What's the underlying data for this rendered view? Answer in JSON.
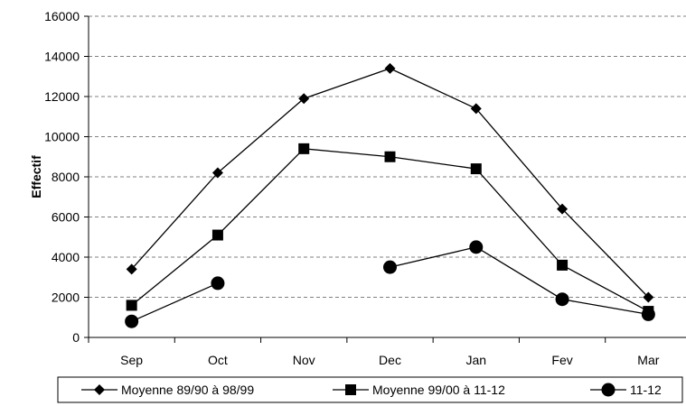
{
  "chart_data": {
    "type": "line",
    "title": "",
    "xlabel": "",
    "ylabel": "Effectif",
    "categories": [
      "Sep",
      "Oct",
      "Nov",
      "Dec",
      "Jan",
      "Fev",
      "Mar"
    ],
    "ylim": [
      0,
      16000
    ],
    "yticks": [
      0,
      2000,
      4000,
      6000,
      8000,
      10000,
      12000,
      14000,
      16000
    ],
    "grid": "horizontal-dashed",
    "legend_position": "bottom",
    "series": [
      {
        "name": "Moyenne 89/90 à 98/99",
        "marker": "diamond",
        "values": [
          3400,
          8200,
          11900,
          13400,
          11400,
          6400,
          2000
        ]
      },
      {
        "name": "Moyenne 99/00 à 11-12",
        "marker": "square",
        "values": [
          1600,
          5100,
          9400,
          9000,
          8400,
          3600,
          1300
        ]
      },
      {
        "name": "11-12",
        "marker": "circle",
        "values": [
          800,
          2700,
          null,
          3500,
          4500,
          1900,
          1150
        ]
      }
    ],
    "line_color": "#000000"
  }
}
